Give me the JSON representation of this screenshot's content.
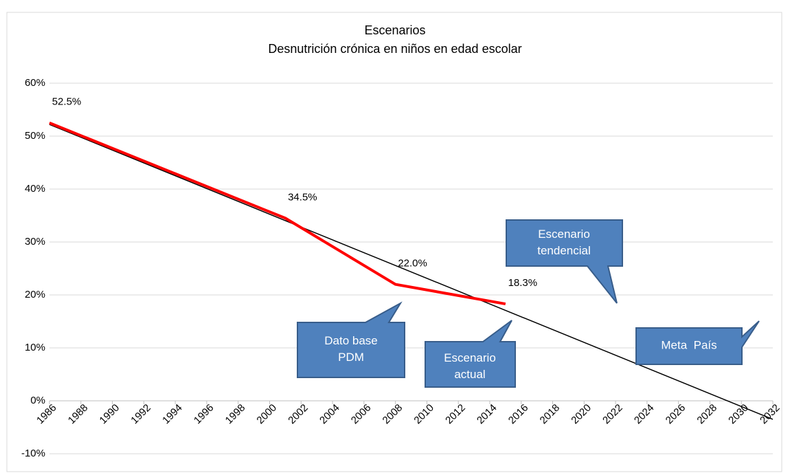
{
  "chart_data": {
    "type": "line",
    "title": "Escenarios",
    "subtitle": "Desnutrición crónica en niños en edad escolar",
    "xlim": [
      1986,
      2032
    ],
    "xticks": [
      1986,
      1988,
      1990,
      1992,
      1994,
      1996,
      1998,
      2000,
      2002,
      2004,
      2006,
      2008,
      2010,
      2012,
      2014,
      2016,
      2018,
      2020,
      2022,
      2024,
      2026,
      2028,
      2030,
      2032
    ],
    "ylim": [
      -10,
      60
    ],
    "yticks": [
      {
        "value": -10,
        "label": "-10%"
      },
      {
        "value": 0,
        "label": "0%"
      },
      {
        "value": 10,
        "label": "10%"
      },
      {
        "value": 20,
        "label": "20%"
      },
      {
        "value": 30,
        "label": "30%"
      },
      {
        "value": 40,
        "label": "40%"
      },
      {
        "value": 50,
        "label": "50%"
      },
      {
        "value": 60,
        "label": "60%"
      }
    ],
    "grid": true,
    "series": [
      {
        "color": "#ff0000",
        "x": [
          1986,
          2001,
          2008,
          2015
        ],
        "values": [
          52.5,
          34.5,
          22.0,
          18.3
        ],
        "value_labels": [
          "52.5%",
          "34.5%",
          "22.0%",
          "18.3%"
        ]
      },
      {
        "color": "#000000",
        "x": [
          1986,
          2032
        ],
        "values": [
          52.2,
          -3.5
        ]
      }
    ],
    "annotations": [
      "Escenario tendencial",
      "Dato base PDM",
      "Escenario actual",
      "Meta  País"
    ]
  }
}
